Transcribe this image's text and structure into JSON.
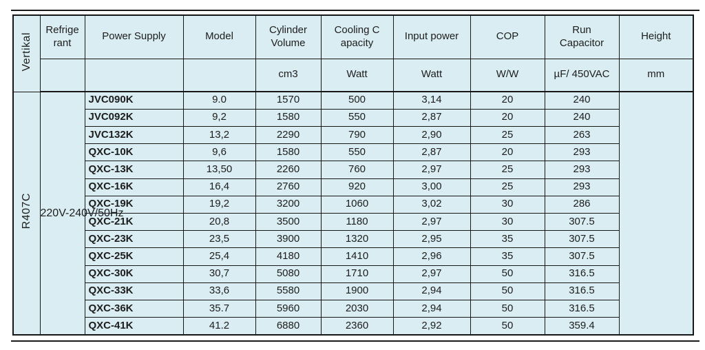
{
  "colors": {
    "cell_fill": "#d9edf2",
    "border": "#161616",
    "text": "#1d1d1d",
    "page_background": "#ffffff"
  },
  "table": {
    "orientation_label": "Vertikal",
    "refrigerant": "R407C",
    "power_supply": "220V-240V/50Hz",
    "headers": {
      "refrigerant": "Refrige\nrant",
      "power_supply": "Power Supply",
      "model": "Model",
      "cylinder_volume": "Cylinder\nVolume",
      "cooling_capacity": "Cooling C\napacity",
      "input_power": "Input power",
      "cop": "COP",
      "run_capacitor": "Run\nCapacitor",
      "height": "Height"
    },
    "units": {
      "cylinder_volume": "cm3",
      "cooling_capacity": "Watt",
      "input_power": "Watt",
      "cop": "W/W",
      "run_capacitor": "µF/ 450VAC",
      "height": "mm"
    },
    "rows": [
      {
        "model": "JVC090K",
        "cylinder_volume": "9.0",
        "cooling_capacity": "1570",
        "input_power": "500",
        "cop": "3,14",
        "run_capacitor": "20",
        "height": "240"
      },
      {
        "model": "JVC092K",
        "cylinder_volume": "9,2",
        "cooling_capacity": "1580",
        "input_power": "550",
        "cop": "2,87",
        "run_capacitor": "20",
        "height": "240"
      },
      {
        "model": "JVC132K",
        "cylinder_volume": "13,2",
        "cooling_capacity": "2290",
        "input_power": "790",
        "cop": "2,90",
        "run_capacitor": "25",
        "height": "263"
      },
      {
        "model": "QXC-10K",
        "cylinder_volume": "9,6",
        "cooling_capacity": "1580",
        "input_power": "550",
        "cop": "2,87",
        "run_capacitor": "20",
        "height": "293"
      },
      {
        "model": "QXC-13K",
        "cylinder_volume": "13,50",
        "cooling_capacity": "2260",
        "input_power": "760",
        "cop": "2,97",
        "run_capacitor": "25",
        "height": "293"
      },
      {
        "model": "QXC-16K",
        "cylinder_volume": "16,4",
        "cooling_capacity": "2760",
        "input_power": "920",
        "cop": "3,00",
        "run_capacitor": "25",
        "height": "293"
      },
      {
        "model": "QXC-19K",
        "cylinder_volume": "19,2",
        "cooling_capacity": "3200",
        "input_power": "1060",
        "cop": "3,02",
        "run_capacitor": "30",
        "height": "286"
      },
      {
        "model": "QXC-21K",
        "cylinder_volume": "20,8",
        "cooling_capacity": "3500",
        "input_power": "1180",
        "cop": "2,97",
        "run_capacitor": "30",
        "height": "307.5"
      },
      {
        "model": "QXC-23K",
        "cylinder_volume": "23,5",
        "cooling_capacity": "3900",
        "input_power": "1320",
        "cop": "2,95",
        "run_capacitor": "35",
        "height": "307.5"
      },
      {
        "model": "QXC-25K",
        "cylinder_volume": "25,4",
        "cooling_capacity": "4180",
        "input_power": "1410",
        "cop": "2,96",
        "run_capacitor": "35",
        "height": "307.5"
      },
      {
        "model": "QXC-30K",
        "cylinder_volume": "30,7",
        "cooling_capacity": "5080",
        "input_power": "1710",
        "cop": "2,97",
        "run_capacitor": "50",
        "height": "316.5"
      },
      {
        "model": "QXC-33K",
        "cylinder_volume": "33,6",
        "cooling_capacity": "5580",
        "input_power": "1900",
        "cop": "2,94",
        "run_capacitor": "50",
        "height": "316.5"
      },
      {
        "model": "QXC-36K",
        "cylinder_volume": "35.7",
        "cooling_capacity": "5960",
        "input_power": "2030",
        "cop": "2,94",
        "run_capacitor": "50",
        "height": "316.5"
      },
      {
        "model": "QXC-41K",
        "cylinder_volume": "41.2",
        "cooling_capacity": "6880",
        "input_power": "2360",
        "cop": "2,92",
        "run_capacitor": "50",
        "height": "359.4"
      }
    ]
  }
}
